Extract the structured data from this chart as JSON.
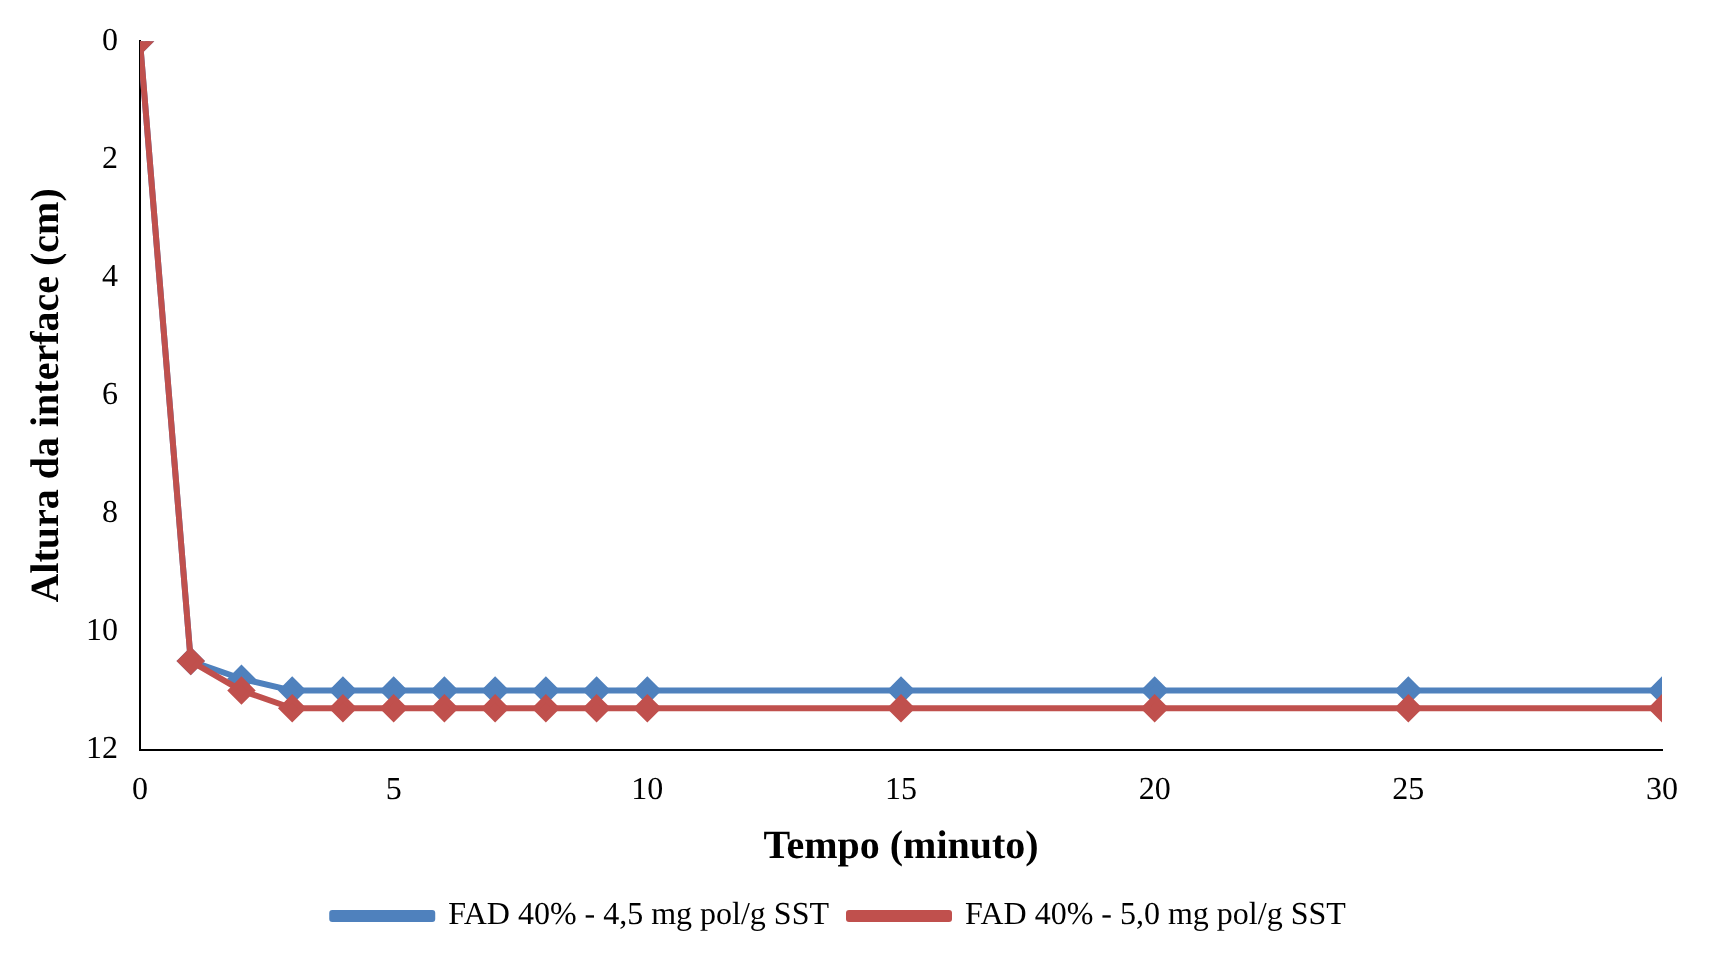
{
  "chart_data": {
    "type": "line",
    "xlabel": "Tempo (minuto)",
    "ylabel": "Altura da interface (cm)",
    "x": [
      0,
      1,
      2,
      3,
      4,
      5,
      6,
      7,
      8,
      9,
      10,
      15,
      20,
      25,
      30
    ],
    "series": [
      {
        "name": "FAD 40% - 4,5 mg pol/g SST",
        "color": "#4f81bd",
        "values": [
          0,
          10.5,
          10.8,
          11.0,
          11.0,
          11.0,
          11.0,
          11.0,
          11.0,
          11.0,
          11.0,
          11.0,
          11.0,
          11.0,
          11.0
        ]
      },
      {
        "name": "FAD 40% - 5,0 mg pol/g SST",
        "color": "#c0504d",
        "values": [
          0,
          10.5,
          11.0,
          11.3,
          11.3,
          11.3,
          11.3,
          11.3,
          11.3,
          11.3,
          11.3,
          11.3,
          11.3,
          11.3,
          11.3
        ]
      }
    ],
    "xlim": [
      0,
      30
    ],
    "xticks": [
      0,
      5,
      10,
      15,
      20,
      25,
      30
    ],
    "ylim": [
      12,
      0
    ],
    "yticks": [
      0,
      2,
      4,
      6,
      8,
      10,
      12
    ],
    "grid": false,
    "legend": "bottom",
    "marker": "diamond",
    "line_style": "solid"
  }
}
